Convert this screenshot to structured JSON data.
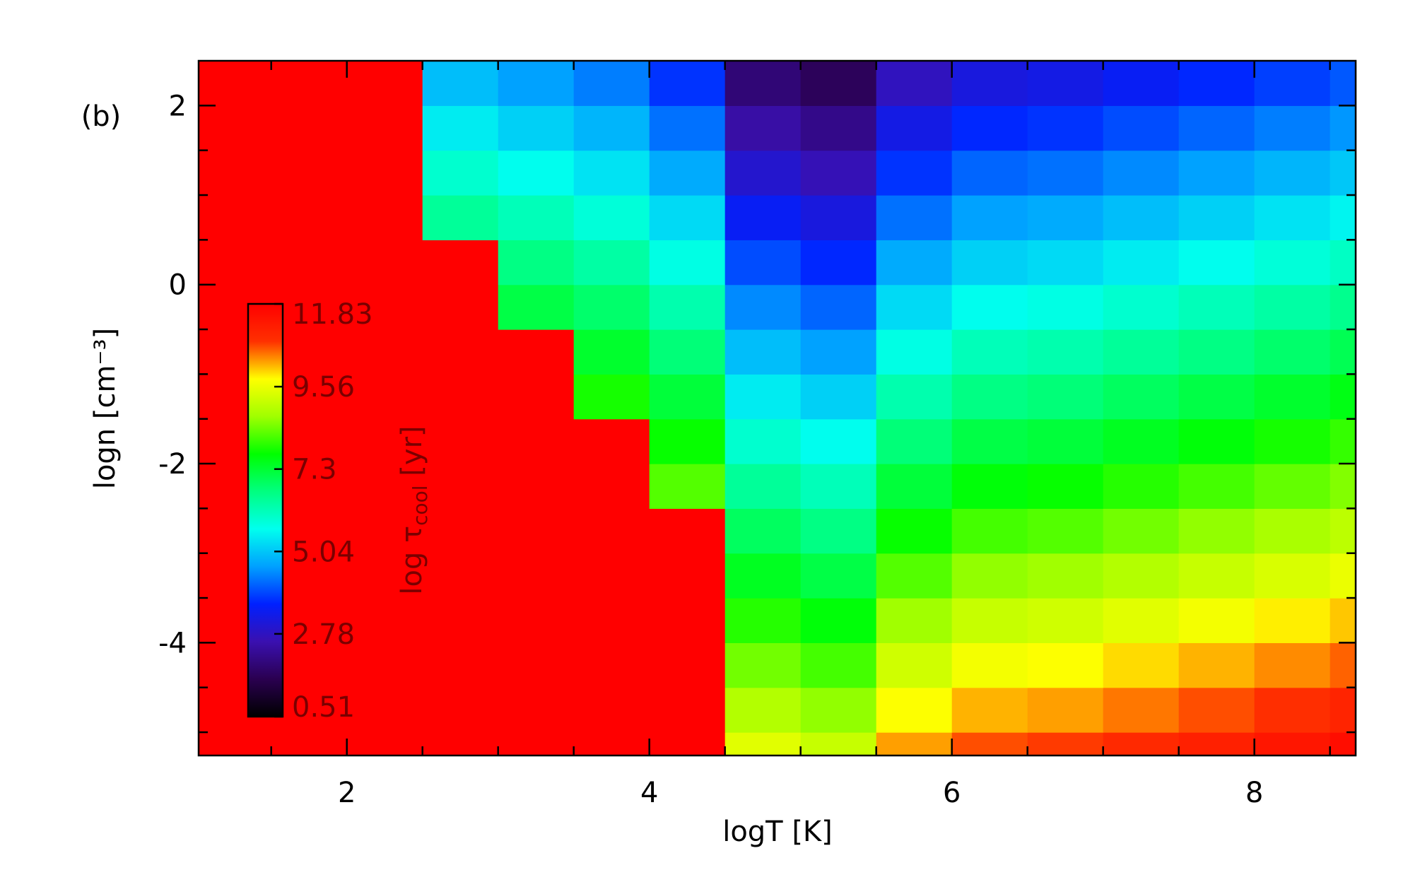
{
  "chart_data": {
    "type": "heatmap",
    "panel_label": "(b)",
    "xlabel": "logT [K]",
    "ylabel": "logn [cm⁻³]",
    "colorbar_label": {
      "prefix": "log τ",
      "subscript": "cool",
      "unit": " [yr]"
    },
    "xlim": [
      1.02,
      8.67
    ],
    "ylim": [
      -5.26,
      2.5
    ],
    "xticks": [
      2,
      4,
      6,
      8
    ],
    "yticks": [
      -4,
      -2,
      0,
      2
    ],
    "xminorticks": [
      1.5,
      2.5,
      3,
      3.5,
      4.5,
      5,
      5.5,
      6.5,
      7,
      7.5,
      8.5
    ],
    "yminorticks": [
      -5,
      -4.5,
      -3.5,
      -3,
      -2.5,
      -1.5,
      -1,
      -0.5,
      0.5,
      1,
      1.5
    ],
    "zlim": [
      0.51,
      11.83
    ],
    "zticks": [
      0.51,
      2.78,
      5.04,
      7.3,
      9.56,
      11.83
    ],
    "colormap": [
      "#000000",
      "#2a0050",
      "#3a10b0",
      "#0020ff",
      "#00a0ff",
      "#00ffee",
      "#00ff80",
      "#00ff00",
      "#a0ff00",
      "#ffff00",
      "#ff3000",
      "#ff0000"
    ],
    "x_edges": [
      1.0,
      1.5,
      2.0,
      2.5,
      3.0,
      3.5,
      4.0,
      4.5,
      5.0,
      5.5,
      6.0,
      6.5,
      7.0,
      7.5,
      8.0,
      8.5,
      9.0
    ],
    "y_edges": [
      -5.5,
      -5.0,
      -4.5,
      -4.0,
      -3.5,
      -3.0,
      -2.5,
      -2.0,
      -1.5,
      -1.0,
      -0.5,
      0.0,
      0.5,
      1.0,
      1.5,
      2.0,
      2.5
    ],
    "z": [
      [
        11.83,
        11.83,
        11.83,
        11.83,
        11.83,
        11.83,
        11.83,
        9.45,
        9.15,
        10.25,
        10.65,
        10.75,
        10.95,
        11.15,
        11.35,
        11.55
      ],
      [
        11.83,
        11.83,
        11.83,
        11.83,
        11.83,
        11.83,
        11.83,
        8.95,
        8.65,
        9.75,
        10.15,
        10.25,
        10.45,
        10.65,
        10.85,
        11.05
      ],
      [
        11.83,
        11.83,
        11.83,
        11.83,
        11.83,
        11.83,
        11.83,
        8.45,
        8.15,
        9.25,
        9.65,
        9.75,
        9.95,
        10.15,
        10.35,
        10.55
      ],
      [
        11.83,
        11.83,
        11.83,
        11.83,
        11.83,
        11.83,
        11.83,
        7.95,
        7.65,
        8.75,
        9.15,
        9.25,
        9.45,
        9.65,
        9.85,
        10.05
      ],
      [
        11.83,
        11.83,
        11.83,
        11.83,
        11.83,
        11.83,
        11.83,
        7.45,
        7.15,
        8.25,
        8.65,
        8.75,
        8.95,
        9.15,
        9.35,
        9.55
      ],
      [
        11.83,
        11.83,
        11.83,
        11.83,
        11.83,
        11.83,
        11.83,
        6.95,
        6.65,
        7.75,
        8.15,
        8.25,
        8.45,
        8.65,
        8.85,
        9.05
      ],
      [
        11.83,
        11.83,
        11.83,
        11.83,
        11.83,
        11.83,
        8.25,
        6.45,
        6.15,
        7.25,
        7.65,
        7.75,
        7.95,
        8.15,
        8.35,
        8.55
      ],
      [
        11.83,
        11.83,
        11.83,
        11.83,
        11.83,
        11.83,
        7.75,
        5.95,
        5.65,
        6.75,
        7.15,
        7.25,
        7.45,
        7.65,
        7.85,
        8.05
      ],
      [
        11.83,
        11.83,
        11.83,
        11.83,
        11.83,
        7.85,
        7.25,
        5.45,
        5.15,
        6.25,
        6.65,
        6.75,
        6.95,
        7.15,
        7.35,
        7.55
      ],
      [
        11.83,
        11.83,
        11.83,
        11.83,
        11.83,
        7.35,
        6.75,
        4.95,
        4.65,
        5.75,
        6.15,
        6.25,
        6.45,
        6.65,
        6.85,
        7.05
      ],
      [
        11.83,
        11.83,
        11.83,
        11.83,
        7.15,
        6.85,
        6.25,
        4.45,
        4.15,
        5.25,
        5.65,
        5.75,
        5.95,
        6.15,
        6.35,
        6.55
      ],
      [
        11.83,
        11.83,
        11.83,
        11.83,
        6.65,
        6.35,
        5.75,
        3.95,
        3.65,
        4.75,
        5.15,
        5.25,
        5.45,
        5.65,
        5.85,
        6.05
      ],
      [
        11.83,
        11.83,
        11.83,
        6.45,
        6.15,
        5.85,
        5.25,
        3.45,
        3.15,
        4.25,
        4.65,
        4.75,
        4.95,
        5.15,
        5.35,
        5.55
      ],
      [
        11.83,
        11.83,
        11.83,
        5.95,
        5.65,
        5.35,
        4.75,
        2.95,
        2.65,
        3.75,
        4.15,
        4.25,
        4.45,
        4.65,
        4.85,
        5.05
      ],
      [
        11.83,
        11.83,
        11.83,
        5.45,
        5.15,
        4.85,
        4.25,
        2.45,
        2.15,
        3.25,
        3.65,
        3.75,
        3.95,
        4.15,
        4.35,
        4.55
      ],
      [
        11.83,
        11.83,
        11.83,
        4.95,
        4.65,
        4.35,
        3.75,
        1.95,
        1.65,
        2.75,
        3.15,
        3.25,
        3.45,
        3.65,
        3.85,
        4.05
      ]
    ]
  }
}
